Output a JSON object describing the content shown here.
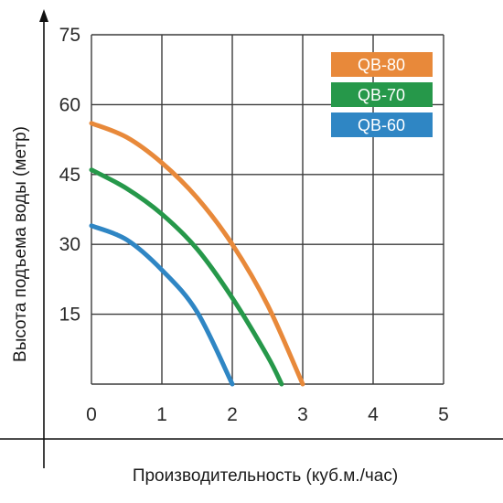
{
  "chart_data": {
    "type": "line",
    "xlabel": "Производительность (куб.м./час)",
    "ylabel": "Высота подъема воды (метр)",
    "xlim": [
      0,
      5
    ],
    "ylim": [
      0,
      75
    ],
    "x_ticks": [
      "0",
      "1",
      "2",
      "3",
      "4",
      "5"
    ],
    "y_ticks": [
      "15",
      "30",
      "45",
      "60",
      "75"
    ],
    "grid": true,
    "legend_position": "top-right",
    "series": [
      {
        "name": "QB-80",
        "color": "#e8893a",
        "x": [
          0,
          0.5,
          1,
          1.5,
          2,
          2.5,
          3
        ],
        "y": [
          56,
          53,
          47.5,
          40,
          30,
          17,
          0
        ]
      },
      {
        "name": "QB-70",
        "color": "#26984a",
        "x": [
          0,
          0.5,
          1,
          1.5,
          2,
          2.5,
          2.7
        ],
        "y": [
          46,
          42,
          36.5,
          29,
          18.5,
          6,
          0
        ]
      },
      {
        "name": "QB-60",
        "color": "#2f86c4",
        "x": [
          0,
          0.5,
          1,
          1.5,
          2
        ],
        "y": [
          34,
          31,
          24.5,
          15.5,
          0
        ]
      }
    ]
  }
}
